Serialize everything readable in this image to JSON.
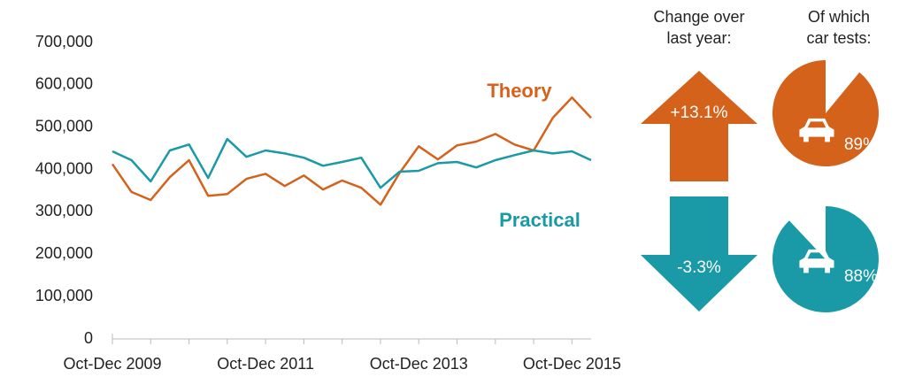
{
  "chart_data": {
    "type": "line",
    "categories": [
      "Oct-Dec 2009",
      null,
      null,
      null,
      null,
      null,
      null,
      null,
      "Oct-Dec 2011",
      null,
      null,
      null,
      null,
      null,
      null,
      null,
      "Oct-Dec 2013",
      null,
      null,
      null,
      null,
      null,
      null,
      null,
      "Oct-Dec 2015",
      null
    ],
    "series": [
      {
        "name": "Theory",
        "color": "#d4621b",
        "values": [
          413000,
          347000,
          328000,
          382000,
          422000,
          338000,
          342000,
          378000,
          390000,
          361000,
          386000,
          353000,
          374000,
          357000,
          317000,
          392000,
          455000,
          424000,
          457000,
          466000,
          484000,
          459000,
          445000,
          522000,
          570000,
          522000
        ]
      },
      {
        "name": "Practical",
        "color": "#1a9aa6",
        "values": [
          443000,
          422000,
          372000,
          445000,
          459000,
          380000,
          472000,
          430000,
          445000,
          438000,
          428000,
          409000,
          418000,
          428000,
          357000,
          395000,
          397000,
          415000,
          418000,
          405000,
          422000,
          434000,
          445000,
          438000,
          443000,
          422000
        ]
      }
    ],
    "ylim": [
      0,
      700000
    ],
    "yticks": [
      0,
      {
        "value": 100000,
        "label": "100,000"
      },
      {
        "value": 200000,
        "label": "200,000"
      },
      {
        "value": 300000,
        "label": "300,000"
      },
      {
        "value": 400000,
        "label": "400,000"
      },
      {
        "value": 500000,
        "label": "500,000"
      },
      {
        "value": 600000,
        "label": "600,000"
      },
      {
        "value": 700000,
        "label": "700,000"
      }
    ],
    "grid": false
  },
  "summary": {
    "change_header": [
      "Change over",
      "last year:"
    ],
    "share_header": [
      "Of which",
      "car tests:"
    ],
    "items": [
      {
        "change": 13.1,
        "change_label": "+13.1%",
        "share": 89,
        "share_label": "89%",
        "gap": "leading"
      },
      {
        "change": -3.3,
        "change_label": "-3.3%",
        "share": 88,
        "share_label": "88%",
        "gap": "trailing"
      }
    ]
  }
}
